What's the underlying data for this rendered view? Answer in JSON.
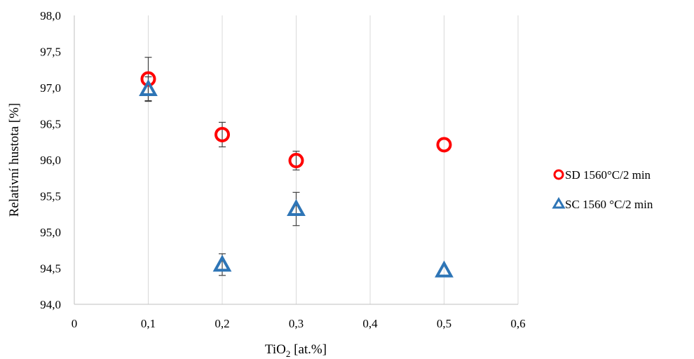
{
  "chart_data": {
    "type": "scatter",
    "xlabel": "TiO",
    "xlabel_sub": "2",
    "xlabel_suffix": " [at.%]",
    "ylabel": "Relativní hustota [%]",
    "xlim": [
      0,
      0.6
    ],
    "ylim": [
      94.0,
      98.0
    ],
    "x_ticks": [
      "0",
      "0,1",
      "0,2",
      "0,3",
      "0,4",
      "0,5",
      "0,6"
    ],
    "x_tick_values": [
      0,
      0.1,
      0.2,
      0.3,
      0.4,
      0.5,
      0.6
    ],
    "y_ticks": [
      "94,0",
      "94,5",
      "95,0",
      "95,5",
      "96,0",
      "96,5",
      "97,0",
      "97,5",
      "98,0"
    ],
    "y_tick_values": [
      94.0,
      94.5,
      95.0,
      95.5,
      96.0,
      96.5,
      97.0,
      97.5,
      98.0
    ],
    "grid": "vertical",
    "legend_position": "right",
    "series": [
      {
        "name": "SD 1560°C/2 min",
        "marker": "circle",
        "color": "#ff0000",
        "points": [
          {
            "x": 0.1,
            "y": 97.12,
            "err": 0.3
          },
          {
            "x": 0.2,
            "y": 96.35,
            "err": 0.17
          },
          {
            "x": 0.3,
            "y": 95.99,
            "err": 0.13
          },
          {
            "x": 0.5,
            "y": 96.21,
            "err": 0
          }
        ]
      },
      {
        "name": "SC 1560 °C/2 min",
        "marker": "triangle",
        "color": "#2e75b6",
        "points": [
          {
            "x": 0.1,
            "y": 96.98,
            "err": 0.17
          },
          {
            "x": 0.2,
            "y": 94.55,
            "err": 0.15
          },
          {
            "x": 0.3,
            "y": 95.32,
            "err": 0.23
          },
          {
            "x": 0.5,
            "y": 94.47,
            "err": 0
          }
        ]
      }
    ]
  }
}
